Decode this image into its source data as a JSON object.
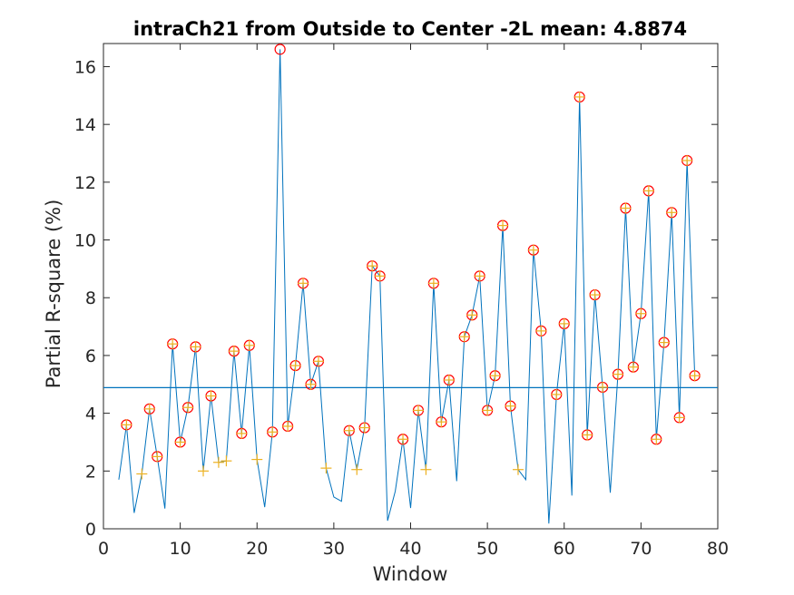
{
  "chart_data": {
    "type": "line",
    "title": "intraCh21 from Outside to Center -2L mean: 4.8874",
    "xlabel": "Window",
    "ylabel": "Partial R-square (%)",
    "xlim": [
      0,
      80
    ],
    "ylim": [
      0,
      16.8
    ],
    "xticks": [
      0,
      10,
      20,
      30,
      40,
      50,
      60,
      70,
      80
    ],
    "yticks": [
      0,
      2,
      4,
      6,
      8,
      10,
      12,
      14,
      16
    ],
    "grid": false,
    "mean_line": 4.8874,
    "colors": {
      "line": "#0072BD",
      "circle_marker": "#FF0000",
      "plus_marker": "#EDB120",
      "axis": "#262626"
    },
    "series": [
      {
        "x": [
          2,
          3,
          4,
          5,
          6,
          7,
          8,
          9,
          10,
          11,
          12,
          13,
          14,
          15,
          16,
          17,
          18,
          19,
          20,
          21,
          22,
          23,
          24,
          25,
          26,
          27,
          28,
          29,
          30,
          31,
          32,
          33,
          34,
          35,
          36,
          37,
          38,
          39,
          40,
          41,
          42,
          43,
          44,
          45,
          46,
          47,
          48,
          49,
          50,
          51,
          52,
          53,
          54,
          55,
          56,
          57,
          58,
          59,
          60,
          61,
          62,
          63,
          64,
          65,
          66,
          67,
          68,
          69,
          70,
          71,
          72,
          73,
          74,
          75,
          76,
          77
        ],
        "y": [
          1.7,
          3.6,
          0.55,
          1.9,
          4.15,
          2.5,
          0.7,
          6.4,
          3.0,
          4.2,
          6.3,
          2.0,
          4.6,
          2.3,
          2.35,
          6.15,
          3.3,
          6.35,
          2.4,
          0.75,
          3.35,
          16.6,
          3.55,
          5.65,
          8.5,
          5.0,
          5.8,
          2.1,
          1.1,
          0.95,
          3.4,
          2.05,
          3.5,
          9.1,
          8.75,
          0.28,
          1.3,
          3.1,
          0.72,
          4.1,
          2.05,
          8.5,
          3.7,
          5.15,
          1.65,
          6.65,
          7.4,
          8.75,
          4.1,
          5.3,
          10.5,
          4.25,
          2.05,
          1.7,
          9.65,
          6.85,
          0.18,
          4.65,
          7.1,
          1.15,
          14.95,
          3.25,
          8.1,
          4.9,
          1.25,
          5.35,
          11.1,
          5.6,
          7.45,
          11.7,
          3.1,
          6.45,
          10.95,
          3.85,
          12.75,
          5.3
        ]
      }
    ],
    "circle_markers_x": [
      3,
      6,
      7,
      9,
      10,
      11,
      12,
      14,
      17,
      18,
      19,
      22,
      23,
      24,
      25,
      26,
      27,
      28,
      32,
      34,
      35,
      36,
      39,
      41,
      43,
      44,
      45,
      47,
      48,
      49,
      50,
      51,
      52,
      53,
      56,
      57,
      59,
      60,
      62,
      63,
      64,
      65,
      67,
      68,
      69,
      70,
      71,
      72,
      73,
      74,
      75,
      76,
      77
    ],
    "plus_markers_x": [
      3,
      5,
      6,
      7,
      9,
      10,
      11,
      12,
      13,
      14,
      15,
      16,
      17,
      18,
      19,
      20,
      22,
      24,
      25,
      26,
      27,
      28,
      29,
      32,
      33,
      34,
      35,
      36,
      39,
      41,
      42,
      43,
      44,
      45,
      47,
      48,
      49,
      50,
      51,
      52,
      53,
      54,
      56,
      57,
      59,
      60,
      62,
      63,
      64,
      65,
      67,
      68,
      69,
      70,
      71,
      72,
      73,
      74,
      75,
      76,
      77
    ]
  }
}
